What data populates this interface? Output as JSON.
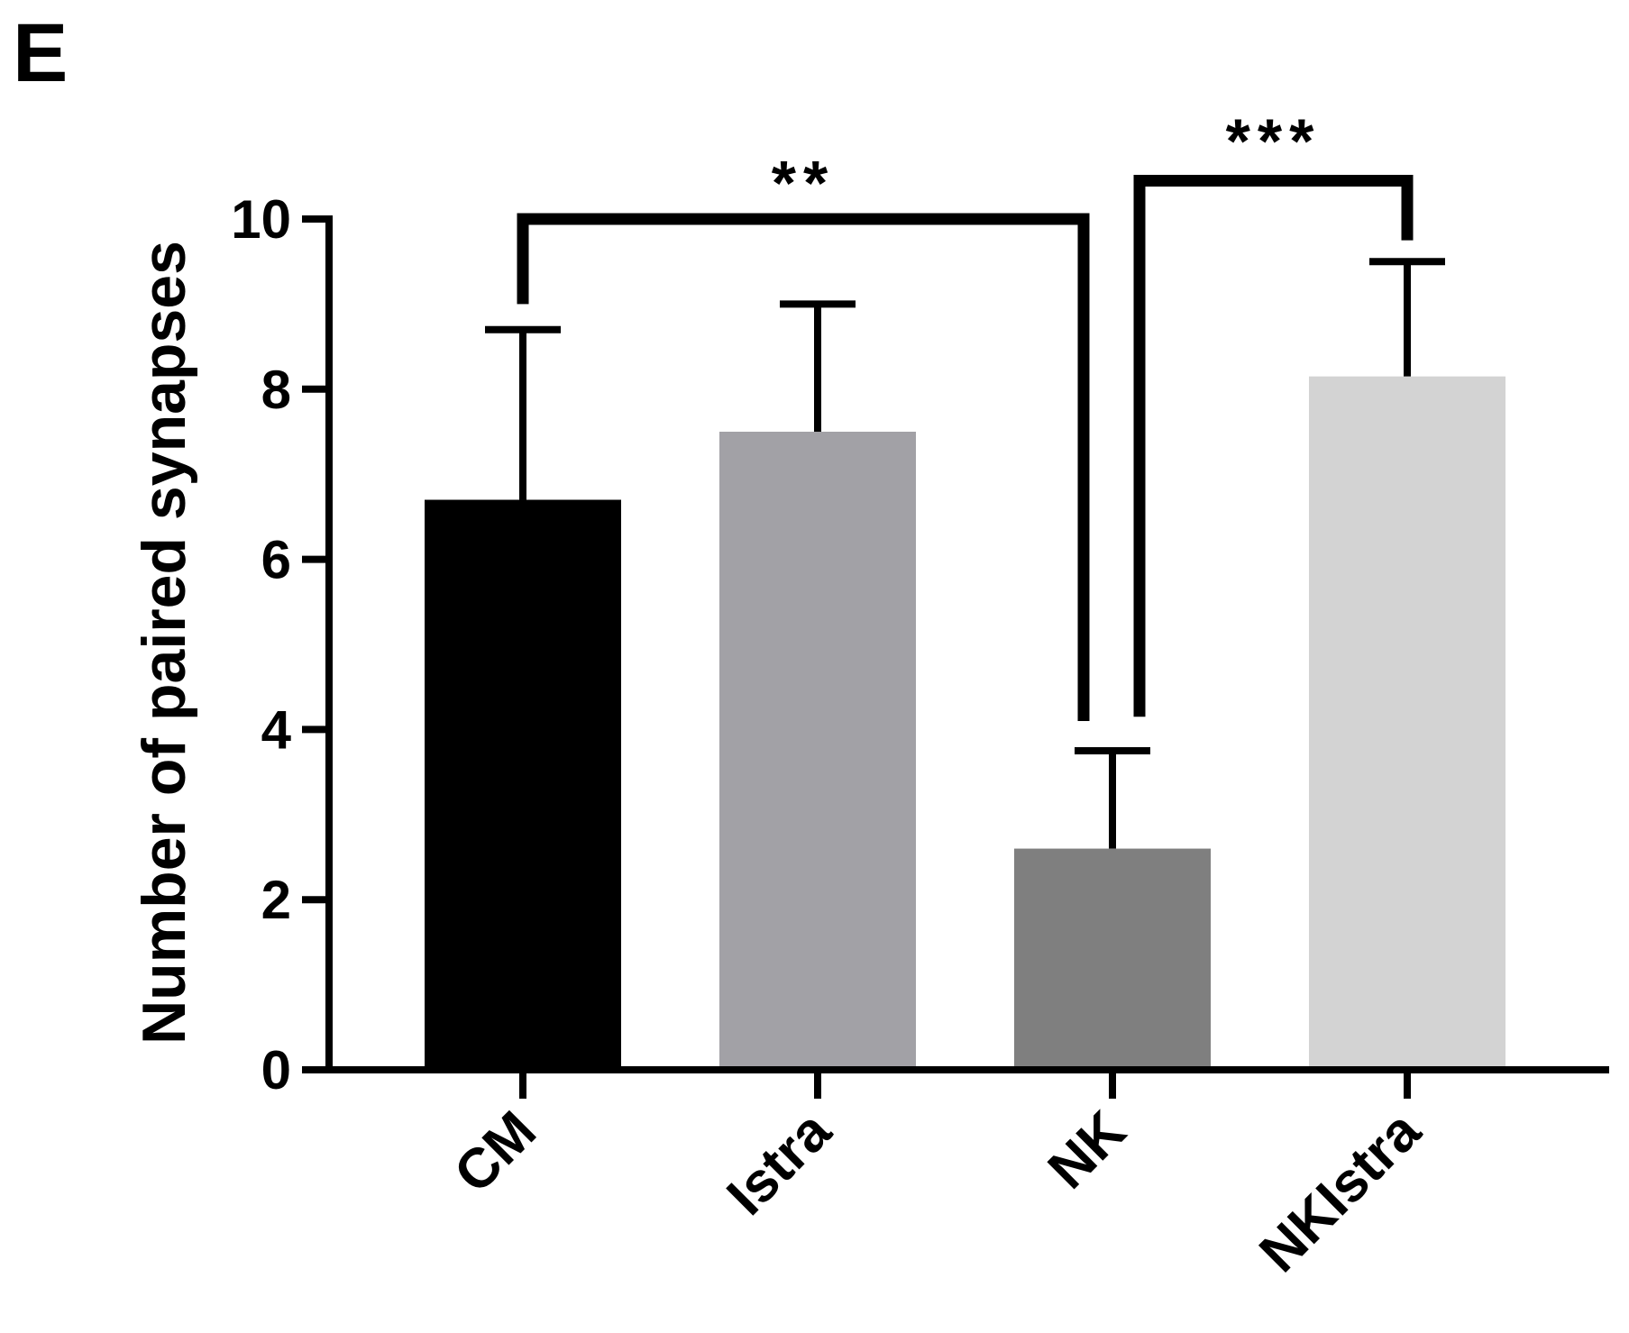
{
  "panel_label": "E",
  "chart_data": {
    "type": "bar",
    "categories": [
      "CM",
      "Istra",
      "NK",
      "NKIstra"
    ],
    "values": [
      6.7,
      7.5,
      2.6,
      8.15
    ],
    "errors": [
      2.0,
      1.5,
      1.15,
      1.35
    ],
    "colors": [
      "#000000",
      "#a2a1a6",
      "#7f7f7f",
      "#d3d3d3"
    ],
    "ylabel": "Number of paired synapses",
    "xlabel": "",
    "ylim": [
      0,
      10
    ],
    "yticks": [
      0,
      2,
      4,
      6,
      8,
      10
    ],
    "grid": false,
    "significance": [
      {
        "from": 0,
        "to": 2,
        "label": "**"
      },
      {
        "from": 2,
        "to": 3,
        "label": "***"
      }
    ]
  }
}
